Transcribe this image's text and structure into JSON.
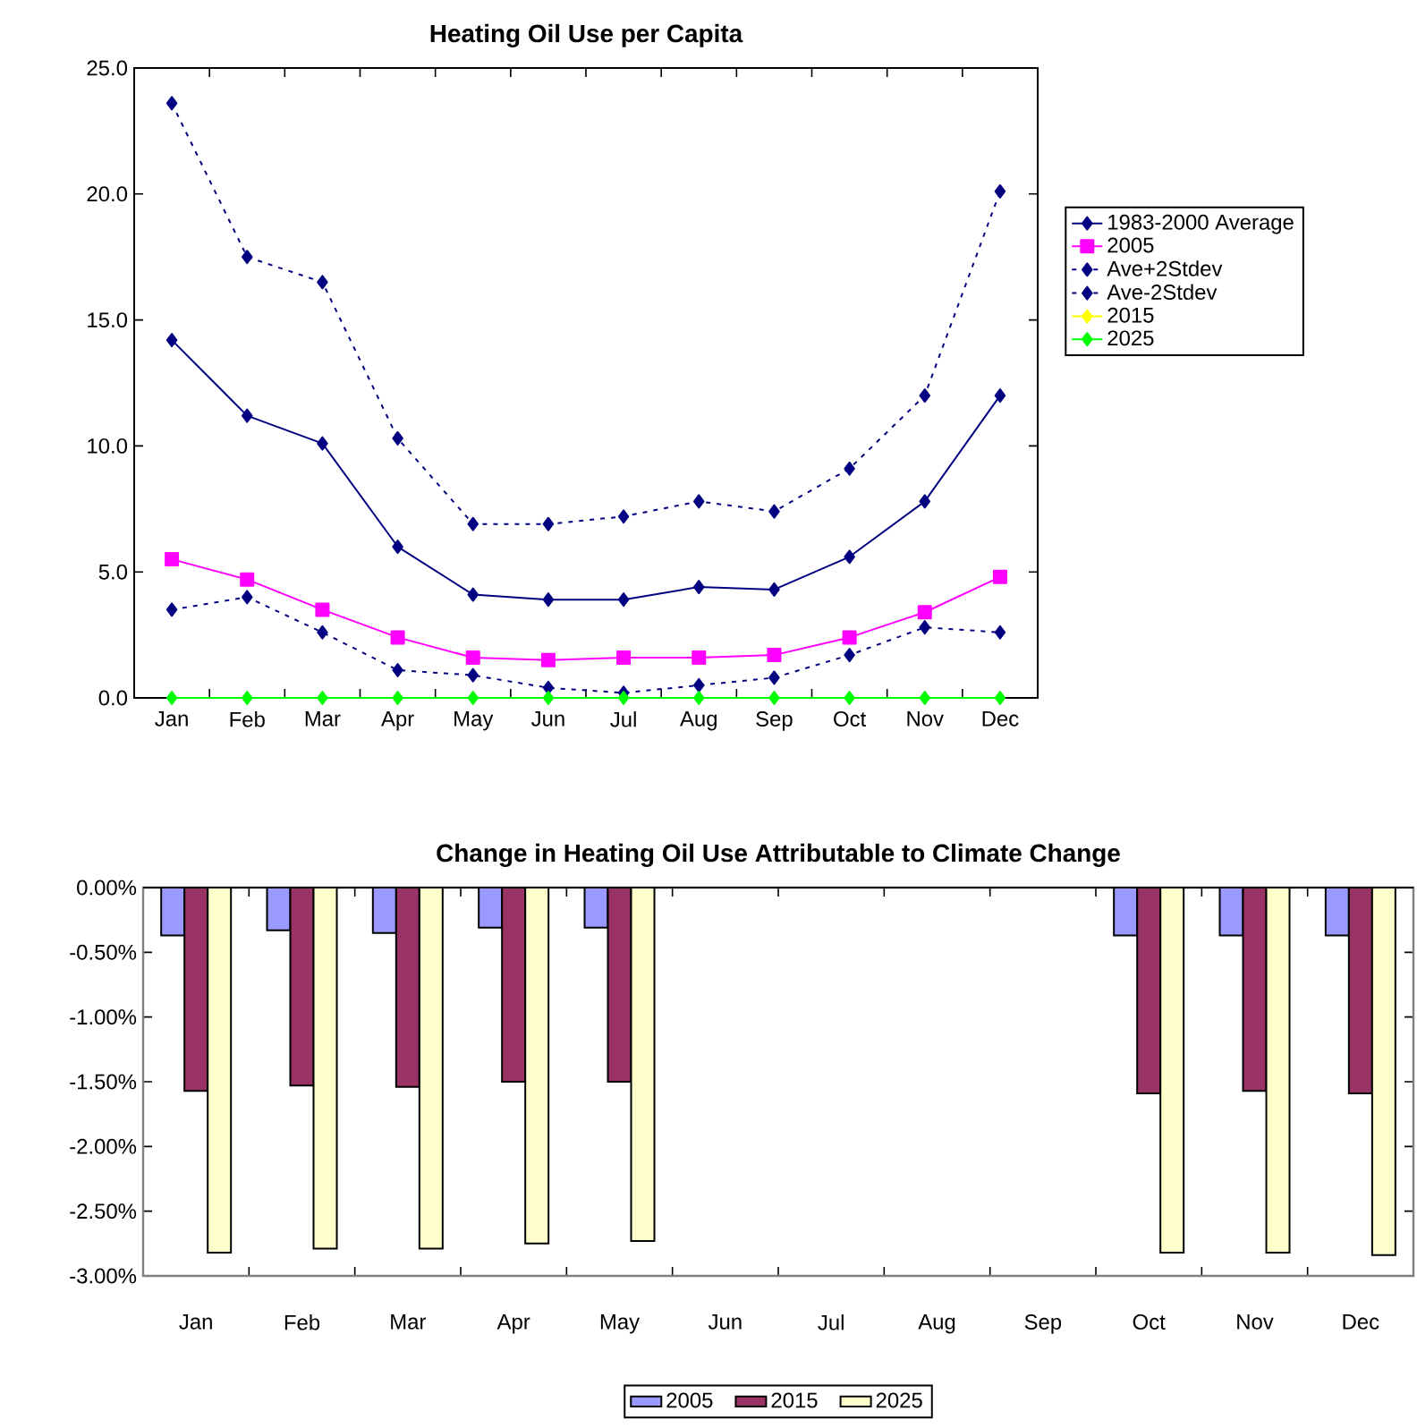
{
  "chart_data": [
    {
      "type": "line",
      "title": "Heating Oil Use per Capita",
      "categories": [
        "Jan",
        "Feb",
        "Mar",
        "Apr",
        "May",
        "Jun",
        "Jul",
        "Aug",
        "Sep",
        "Oct",
        "Nov",
        "Dec"
      ],
      "ylim": [
        0,
        25
      ],
      "yticks": [
        {
          "value": 0,
          "label": "0.0"
        },
        {
          "value": 5,
          "label": "5.0"
        },
        {
          "value": 10,
          "label": "10.0"
        },
        {
          "value": 15,
          "label": "15.0"
        },
        {
          "value": 20,
          "label": "20.0"
        },
        {
          "value": 25,
          "label": "25.0"
        }
      ],
      "legend": "right",
      "series": [
        {
          "name": "1983-2000 Average",
          "color": "#000080",
          "marker": "diamond",
          "line_style": "solid",
          "values": [
            14.2,
            11.2,
            10.1,
            6.0,
            4.1,
            3.9,
            3.9,
            4.4,
            4.3,
            5.6,
            7.8,
            12.0
          ]
        },
        {
          "name": "2005",
          "color": "#ff00ff",
          "marker": "square",
          "line_style": "solid",
          "values": [
            5.5,
            4.7,
            3.5,
            2.4,
            1.6,
            1.5,
            1.6,
            1.6,
            1.7,
            2.4,
            3.4,
            4.8
          ]
        },
        {
          "name": "Ave+2Stdev",
          "color": "#000080",
          "marker": "diamond",
          "line_style": "dotted",
          "values": [
            23.6,
            17.5,
            16.5,
            10.3,
            6.9,
            6.9,
            7.2,
            7.8,
            7.4,
            9.1,
            12.0,
            20.1
          ]
        },
        {
          "name": "Ave-2Stdev",
          "color": "#000080",
          "marker": "diamond",
          "line_style": "dotted",
          "values": [
            3.5,
            4.0,
            2.6,
            1.1,
            0.9,
            0.4,
            0.2,
            0.5,
            0.8,
            1.7,
            2.8,
            2.6
          ]
        },
        {
          "name": "2015",
          "color": "#ffff00",
          "marker": "diamond",
          "line_style": "solid",
          "values": [
            null,
            null,
            null,
            null,
            null,
            null,
            null,
            null,
            null,
            null,
            null,
            null
          ]
        },
        {
          "name": "2025",
          "color": "#00ff00",
          "marker": "diamond",
          "line_style": "solid",
          "values": [
            0,
            0,
            0,
            0,
            0,
            0,
            0,
            0,
            0,
            0,
            0,
            0
          ]
        }
      ]
    },
    {
      "type": "bar",
      "title": "Change in Heating Oil Use Attributable to Climate Change",
      "categories": [
        "Jan",
        "Feb",
        "Mar",
        "Apr",
        "May",
        "Jun",
        "Jul",
        "Aug",
        "Sep",
        "Oct",
        "Nov",
        "Dec"
      ],
      "ylim": [
        -3,
        0
      ],
      "yticks": [
        {
          "value": -3,
          "label": "-3.00%"
        },
        {
          "value": -2.5,
          "label": "-2.50%"
        },
        {
          "value": -2,
          "label": "-2.00%"
        },
        {
          "value": -1.5,
          "label": "-1.50%"
        },
        {
          "value": -1,
          "label": "-1.00%"
        },
        {
          "value": -0.5,
          "label": "-0.50%"
        },
        {
          "value": 0,
          "label": "0.00%"
        }
      ],
      "legend": "bottom",
      "series": [
        {
          "name": "2005",
          "color": "#9999ff",
          "values": [
            -0.37,
            -0.33,
            -0.35,
            -0.31,
            -0.31,
            null,
            null,
            null,
            null,
            -0.37,
            -0.37,
            -0.37
          ]
        },
        {
          "name": "2015",
          "color": "#993366",
          "values": [
            -1.57,
            -1.53,
            -1.54,
            -1.5,
            -1.5,
            null,
            null,
            null,
            null,
            -1.59,
            -1.57,
            -1.59
          ]
        },
        {
          "name": "2025",
          "color": "#ffffcc",
          "values": [
            -2.82,
            -2.79,
            -2.79,
            -2.75,
            -2.73,
            null,
            null,
            null,
            null,
            -2.82,
            -2.82,
            -2.84
          ]
        }
      ]
    }
  ]
}
